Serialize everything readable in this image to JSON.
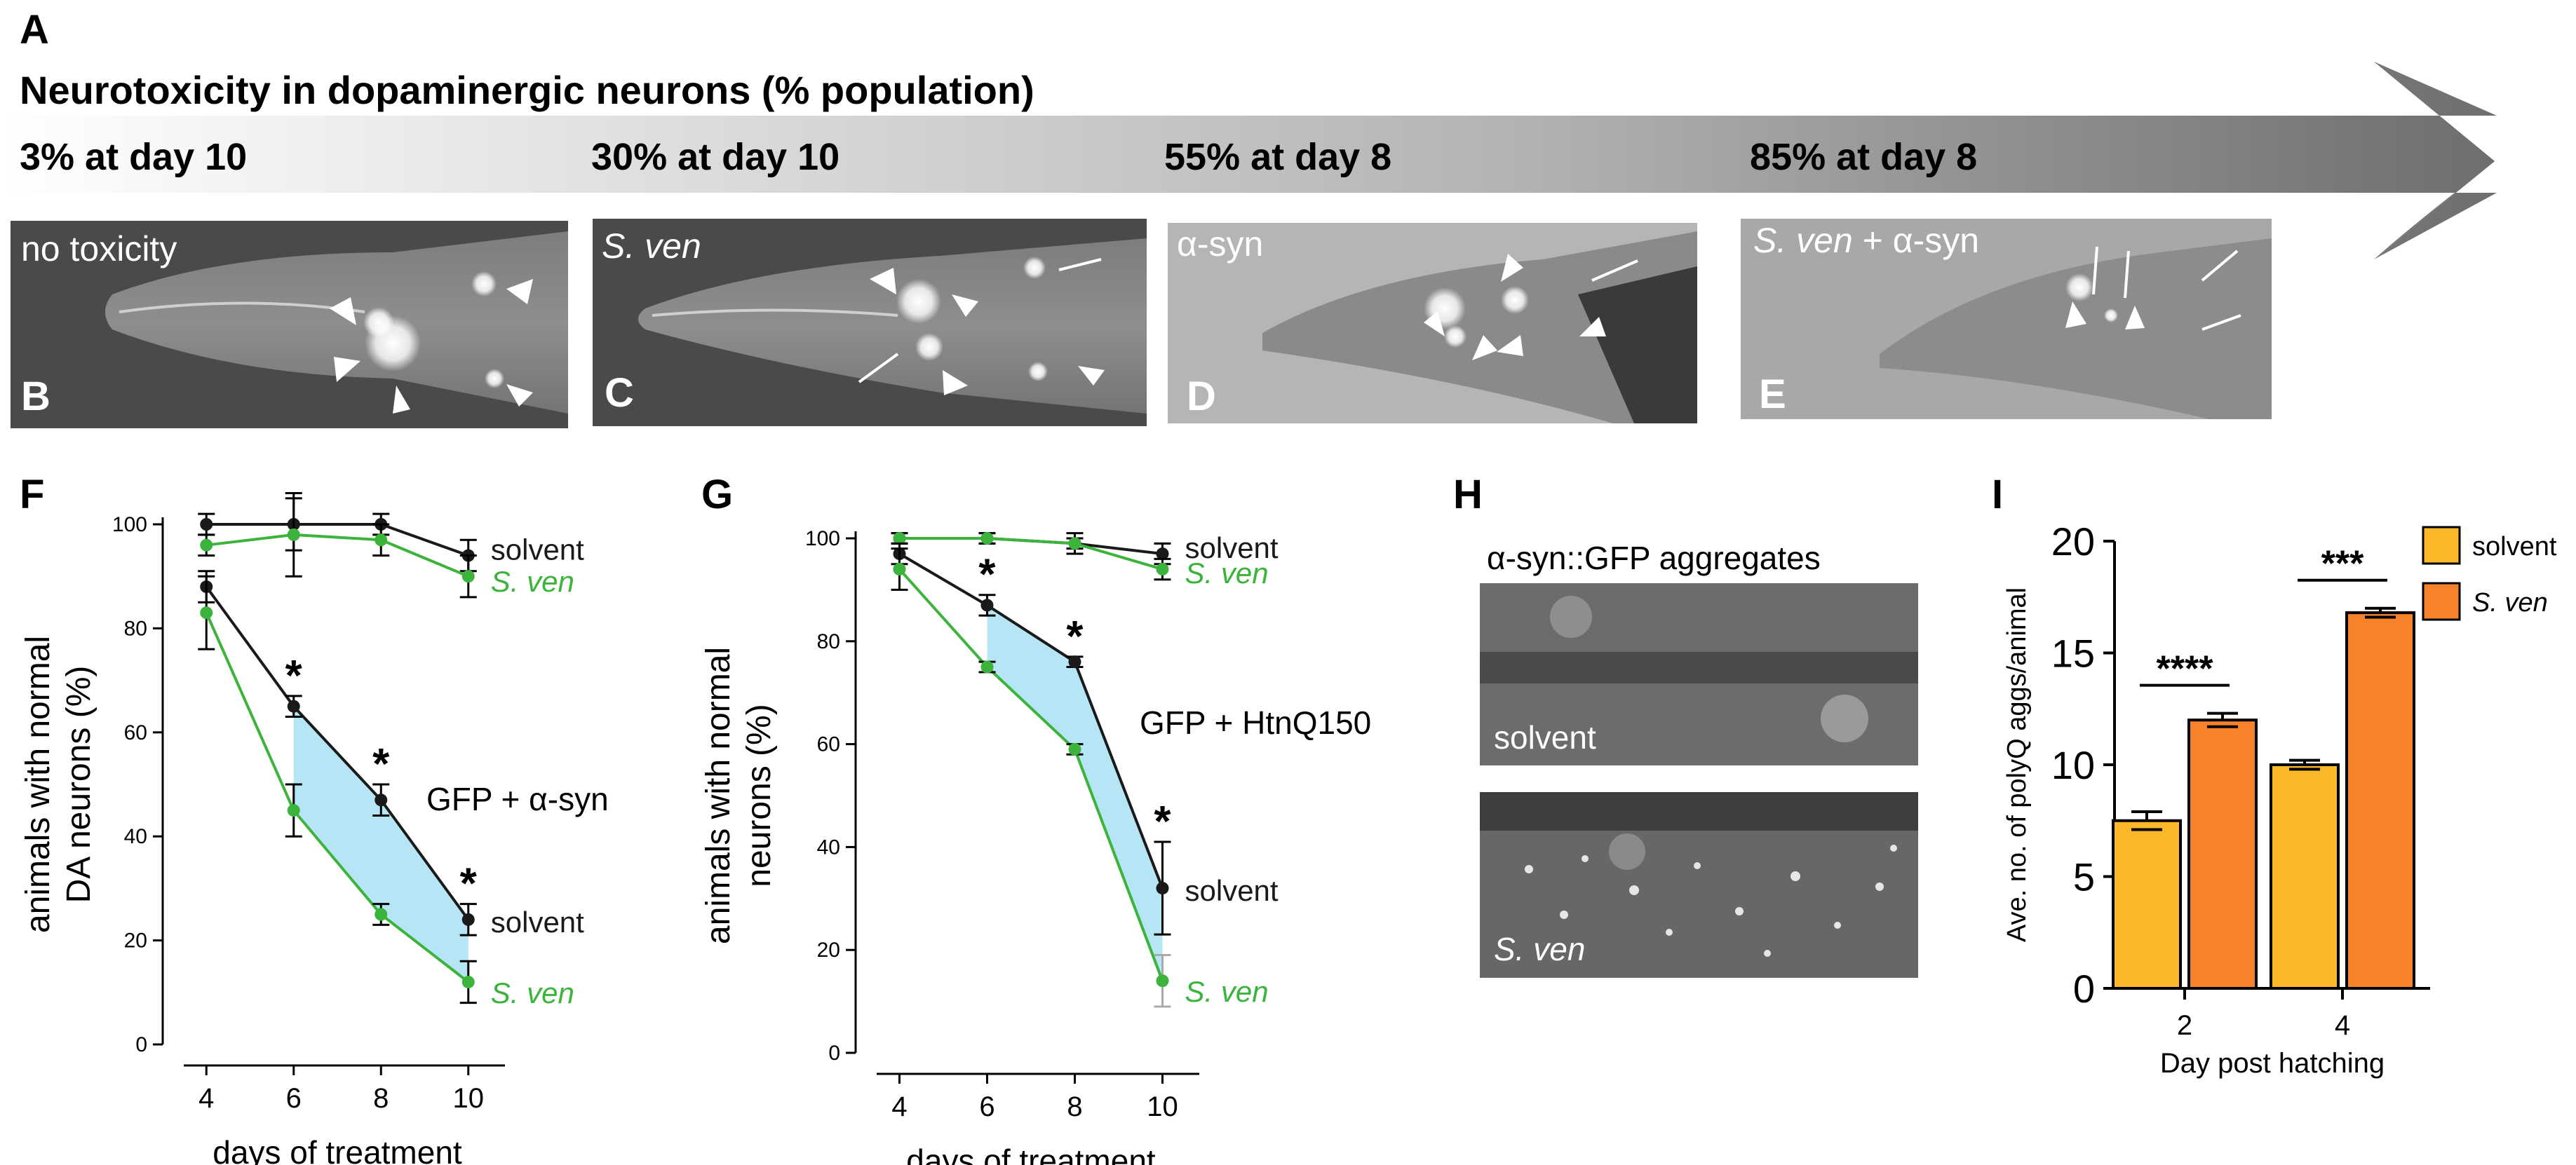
{
  "panel_a": {
    "letter": "A",
    "title": "Neurotoxicity in dopaminergic neurons (% population)",
    "stages": [
      "3% at day 10",
      "30% at day 10",
      "55% at day 8",
      "85% at day 8"
    ]
  },
  "micrographs": [
    {
      "letter": "B",
      "label": "no toxicity"
    },
    {
      "letter": "C",
      "label": "S. ven"
    },
    {
      "letter": "D",
      "label": "α-syn"
    },
    {
      "letter": "E",
      "label_italic": "S. ven",
      "label_rest": " + α-syn"
    }
  ],
  "panel_h": {
    "letter": "H",
    "title": "α-syn::GFP aggregates",
    "images": [
      "solvent",
      "S. ven"
    ]
  },
  "colors": {
    "solvent": "#1a1a1a",
    "sven": "#3cb43c",
    "shade": "#b6e6f5",
    "bar_solvent": "#fbb829",
    "bar_sven": "#f7822a"
  },
  "chart_data": [
    {
      "panel": "F",
      "type": "line",
      "xlabel": "days of treatment",
      "ylabel_lines": [
        "animals with normal",
        "DA neurons (%)"
      ],
      "x": [
        4,
        6,
        8,
        10
      ],
      "xlim": [
        3,
        11
      ],
      "ylim": [
        0,
        100
      ],
      "yticks": [
        0,
        20,
        40,
        60,
        80,
        100
      ],
      "series": [
        {
          "name": "solvent",
          "values": [
            100,
            100,
            100,
            94
          ],
          "err": [
            2,
            5,
            2,
            3
          ],
          "color": "solvent"
        },
        {
          "name": "S. ven",
          "values": [
            96,
            98,
            97,
            90
          ],
          "err": [
            2,
            8,
            3,
            4
          ],
          "color": "sven"
        },
        {
          "name": "solvent",
          "values": [
            88,
            65,
            47,
            24
          ],
          "err": [
            3,
            2,
            3,
            3
          ],
          "color": "solvent"
        },
        {
          "name": "S. ven",
          "values": [
            83,
            45,
            25,
            12
          ],
          "err": [
            7,
            5,
            2,
            4
          ],
          "color": "sven"
        }
      ],
      "annotations": {
        "group_label": "GFP + α-syn",
        "asterisk": "*",
        "asterisk_x": [
          6,
          8,
          10
        ]
      }
    },
    {
      "panel": "G",
      "type": "line",
      "xlabel": "days of treatment",
      "ylabel_lines": [
        "animals with normal",
        "neurons (%)"
      ],
      "x": [
        4,
        6,
        8,
        10
      ],
      "xlim": [
        3,
        11
      ],
      "ylim": [
        0,
        100
      ],
      "yticks": [
        0,
        20,
        40,
        60,
        80,
        100
      ],
      "series": [
        {
          "name": "solvent",
          "values": [
            100,
            100,
            99,
            97
          ],
          "err": [
            1,
            1,
            2,
            2
          ],
          "color": "solvent"
        },
        {
          "name": "S. ven",
          "values": [
            100,
            100,
            99,
            94
          ],
          "err": [
            1,
            1,
            1,
            2
          ],
          "color": "sven"
        },
        {
          "name": "solvent",
          "values": [
            97,
            87,
            76,
            32
          ],
          "err": [
            2,
            2,
            1,
            9
          ],
          "color": "solvent"
        },
        {
          "name": "S. ven",
          "values": [
            94,
            75,
            59,
            14
          ],
          "err": [
            4,
            1,
            1,
            5
          ],
          "color": "sven"
        }
      ],
      "annotations": {
        "group_label": "GFP + HtnQ150",
        "asterisk": "*",
        "asterisk_x": [
          6,
          8,
          10
        ]
      }
    },
    {
      "panel": "I",
      "type": "bar",
      "xlabel": "Day post hatching",
      "ylabel": "Ave. no. of polyQ aggs/animal",
      "categories": [
        "2",
        "4"
      ],
      "ylim": [
        0,
        20
      ],
      "yticks": [
        0,
        5,
        10,
        15,
        20
      ],
      "series": [
        {
          "name": "solvent",
          "values": [
            7.5,
            10.0
          ],
          "err": [
            0.4,
            0.2
          ],
          "color": "bar_solvent"
        },
        {
          "name": "S. ven",
          "values": [
            12.0,
            16.8
          ],
          "err": [
            0.3,
            0.2
          ],
          "color": "bar_sven"
        }
      ],
      "significance": [
        "****",
        "***"
      ],
      "legend": "right"
    }
  ]
}
